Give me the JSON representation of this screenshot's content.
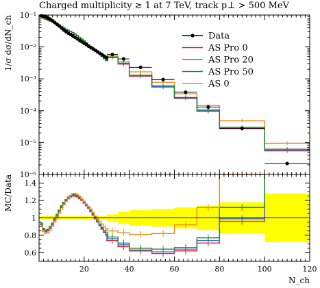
{
  "chart_data": [
    {
      "type": "line",
      "panel": "main",
      "title": "Charged multiplicity ≥ 1 at 7 TeV, track p⊥ > 500 MeV",
      "ylabel": "1/σ dσ/dN_ch",
      "yscale": "log",
      "ylim": [
        1e-06,
        0.1
      ],
      "xlim": [
        0,
        120
      ],
      "ytick_labels": [
        "10⁻¹",
        "10⁻²",
        "10⁻³",
        "10⁻⁴",
        "10⁻⁵",
        "10⁻⁶"
      ],
      "legend_position": "top-right",
      "series": [
        {
          "name": "Data",
          "color": "#000000",
          "style": "points",
          "x": [
            1,
            2,
            3,
            4,
            5,
            6,
            7,
            8,
            9,
            10,
            11,
            12,
            13,
            14,
            15,
            16,
            17,
            18,
            19,
            20,
            21,
            22,
            23,
            24,
            25,
            26,
            27,
            28,
            29,
            30,
            32.5,
            37.5,
            45,
            55,
            65,
            75,
            90,
            110
          ],
          "values": [
            0.095,
            0.092,
            0.088,
            0.081,
            0.074,
            0.066,
            0.058,
            0.051,
            0.045,
            0.039,
            0.034,
            0.03,
            0.027,
            0.0245,
            0.022,
            0.02,
            0.018,
            0.016,
            0.0145,
            0.013,
            0.0118,
            0.0105,
            0.0095,
            0.0086,
            0.0078,
            0.007,
            0.0063,
            0.0057,
            0.0051,
            0.0046,
            0.0058,
            0.0042,
            0.0023,
            0.00095,
            0.00038,
            0.00013,
            2.8e-05,
            2.2e-06
          ]
        },
        {
          "name": "AS Pro 0",
          "color": "#e8202a",
          "style": "step",
          "edges": [
            30,
            35,
            40,
            50,
            60,
            70,
            80,
            100,
            120
          ],
          "values": [
            0.0046,
            0.0029,
            0.0012,
            0.00055,
            0.00024,
            9.5e-05,
            2.7e-05,
            5.5e-06
          ]
        },
        {
          "name": "AS Pro 20",
          "color": "#3a6fe8",
          "style": "step",
          "edges": [
            30,
            35,
            40,
            50,
            60,
            70,
            80,
            100,
            120
          ],
          "values": [
            0.0047,
            0.003,
            0.00125,
            0.00057,
            0.00025,
            0.0001,
            2.8e-05,
            5.8e-06
          ]
        },
        {
          "name": "AS Pro 50",
          "color": "#1e8a1e",
          "style": "step",
          "edges": [
            30,
            35,
            40,
            50,
            60,
            70,
            80,
            100,
            120
          ],
          "values": [
            0.0048,
            0.0031,
            0.0013,
            0.0006,
            0.00026,
            0.000105,
            3e-05,
            6.2e-06
          ]
        },
        {
          "name": "AS 0",
          "color": "#f08a1c",
          "style": "step",
          "edges": [
            30,
            35,
            40,
            50,
            60,
            70,
            80,
            100,
            120
          ],
          "values": [
            0.0052,
            0.0035,
            0.00165,
            0.00078,
            0.00034,
            0.000145,
            4.8e-05,
            9.5e-06
          ]
        }
      ]
    },
    {
      "type": "line",
      "panel": "ratio",
      "ylabel": "MC/Data",
      "xlabel": "N_ch",
      "ylim": [
        0.5,
        1.5
      ],
      "xlim": [
        0,
        120
      ],
      "yticks": [
        0.6,
        0.8,
        1.0,
        1.2,
        1.4
      ],
      "ytick_labels": [
        "0.6",
        "0.8",
        "1",
        "1.2",
        "1.4"
      ],
      "xticks": [
        20,
        40,
        60,
        80,
        100,
        120
      ],
      "xtick_labels": [
        "20",
        "40",
        "60",
        "80",
        "100",
        "120"
      ],
      "uncertainty_band": {
        "color": "#ffff00",
        "edges": [
          0,
          30,
          35,
          40,
          50,
          60,
          70,
          80,
          100,
          120
        ],
        "lower": [
          0.98,
          0.96,
          0.93,
          0.91,
          0.9,
          0.88,
          0.86,
          0.82,
          0.72
        ],
        "upper": [
          1.02,
          1.04,
          1.07,
          1.09,
          1.1,
          1.12,
          1.14,
          1.18,
          1.28
        ]
      },
      "series": [
        {
          "name": "AS Pro 0",
          "color": "#e8202a",
          "x": [
            1,
            2,
            3,
            4,
            5,
            6,
            7,
            8,
            9,
            10,
            11,
            12,
            13,
            14,
            15,
            16,
            17,
            18,
            19,
            20,
            21,
            22,
            23,
            24,
            25,
            26,
            27,
            28,
            29,
            30
          ],
          "values": [
            0.92,
            0.86,
            0.84,
            0.85,
            0.88,
            0.92,
            0.97,
            1.02,
            1.07,
            1.12,
            1.16,
            1.19,
            1.22,
            1.24,
            1.25,
            1.25,
            1.24,
            1.22,
            1.2,
            1.17,
            1.14,
            1.11,
            1.07,
            1.03,
            0.99,
            0.95,
            0.91,
            0.87,
            0.83,
            0.8
          ],
          "step_edges": [
            30,
            35,
            40,
            50,
            60,
            70,
            80,
            100
          ],
          "step_values": [
            0.74,
            0.67,
            0.62,
            0.59,
            0.62,
            0.71,
            0.96
          ]
        },
        {
          "name": "AS Pro 20",
          "color": "#3a6fe8",
          "x": [
            1,
            2,
            3,
            4,
            5,
            6,
            7,
            8,
            9,
            10,
            11,
            12,
            13,
            14,
            15,
            16,
            17,
            18,
            19,
            20,
            21,
            22,
            23,
            24,
            25,
            26,
            27,
            28,
            29,
            30
          ],
          "values": [
            0.93,
            0.87,
            0.85,
            0.86,
            0.89,
            0.93,
            0.98,
            1.03,
            1.08,
            1.13,
            1.17,
            1.2,
            1.23,
            1.25,
            1.26,
            1.26,
            1.25,
            1.23,
            1.21,
            1.18,
            1.15,
            1.12,
            1.08,
            1.04,
            1.0,
            0.96,
            0.92,
            0.88,
            0.84,
            0.81
          ],
          "step_edges": [
            30,
            35,
            40,
            50,
            60,
            70,
            80,
            100
          ],
          "step_values": [
            0.76,
            0.69,
            0.63,
            0.61,
            0.64,
            0.74,
            0.99
          ]
        },
        {
          "name": "AS Pro 50",
          "color": "#1e8a1e",
          "x": [
            1,
            2,
            3,
            4,
            5,
            6,
            7,
            8,
            9,
            10,
            11,
            12,
            13,
            14,
            15,
            16,
            17,
            18,
            19,
            20,
            21,
            22,
            23,
            24,
            25,
            26,
            27,
            28,
            29,
            30
          ],
          "values": [
            0.94,
            0.88,
            0.86,
            0.87,
            0.9,
            0.94,
            0.99,
            1.04,
            1.09,
            1.14,
            1.18,
            1.21,
            1.24,
            1.26,
            1.27,
            1.27,
            1.26,
            1.24,
            1.22,
            1.19,
            1.16,
            1.13,
            1.09,
            1.05,
            1.01,
            0.97,
            0.93,
            0.89,
            0.86,
            0.83
          ],
          "step_edges": [
            30,
            35,
            40,
            50,
            60,
            70,
            80,
            100
          ],
          "step_values": [
            0.78,
            0.71,
            0.65,
            0.64,
            0.66,
            0.77,
            1.12
          ]
        },
        {
          "name": "AS 0",
          "color": "#f08a1c",
          "x": [
            1,
            2,
            3,
            4,
            5,
            6,
            7,
            8,
            9,
            10,
            11,
            12,
            13,
            14,
            15,
            16,
            17,
            18,
            19,
            20,
            21,
            22,
            23,
            24,
            25,
            26,
            27,
            28,
            29,
            30
          ],
          "values": [
            0.9,
            0.84,
            0.82,
            0.83,
            0.86,
            0.9,
            0.95,
            1.0,
            1.05,
            1.1,
            1.15,
            1.19,
            1.23,
            1.26,
            1.28,
            1.28,
            1.27,
            1.25,
            1.22,
            1.19,
            1.16,
            1.13,
            1.1,
            1.06,
            1.02,
            0.99,
            0.96,
            0.93,
            0.9,
            0.88
          ],
          "step_edges": [
            30,
            35,
            40,
            50,
            60,
            70,
            80,
            100
          ],
          "step_values": [
            0.85,
            0.83,
            0.81,
            0.82,
            0.92,
            1.12,
            1.5
          ]
        }
      ]
    }
  ]
}
